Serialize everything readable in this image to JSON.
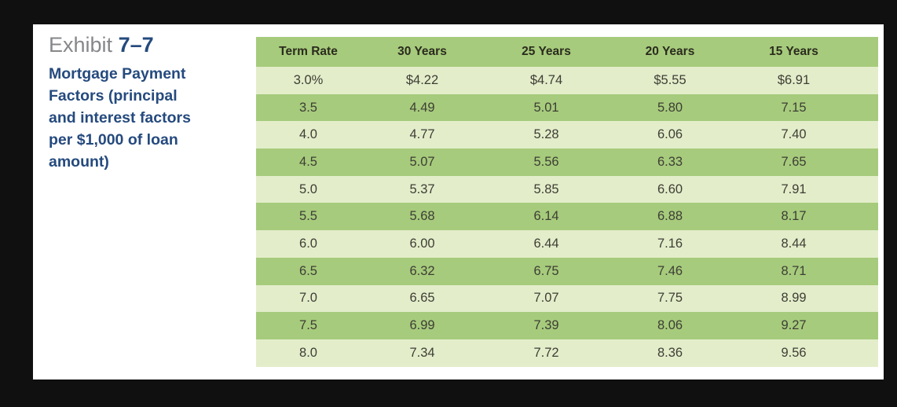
{
  "exhibit": {
    "label": "Exhibit",
    "number": "7–7",
    "description": "Mortgage Payment\nFactors (principal\nand interest factors\nper $1,000 of loan\namount)"
  },
  "table": {
    "columns": [
      "Term Rate",
      "30 Years",
      "25 Years",
      "20 Years",
      "15 Years"
    ],
    "rows": [
      [
        "3.0%",
        "$4.22",
        "$4.74",
        "$5.55",
        "$6.91"
      ],
      [
        "3.5",
        "4.49",
        "5.01",
        "5.80",
        "7.15"
      ],
      [
        "4.0",
        "4.77",
        "5.28",
        "6.06",
        "7.40"
      ],
      [
        "4.5",
        "5.07",
        "5.56",
        "6.33",
        "7.65"
      ],
      [
        "5.0",
        "5.37",
        "5.85",
        "6.60",
        "7.91"
      ],
      [
        "5.5",
        "5.68",
        "6.14",
        "6.88",
        "8.17"
      ],
      [
        "6.0",
        "6.00",
        "6.44",
        "7.16",
        "8.44"
      ],
      [
        "6.5",
        "6.32",
        "6.75",
        "7.46",
        "8.71"
      ],
      [
        "7.0",
        "6.65",
        "7.07",
        "7.75",
        "8.99"
      ],
      [
        "7.5",
        "6.99",
        "7.39",
        "8.06",
        "9.27"
      ],
      [
        "8.0",
        "7.34",
        "7.72",
        "8.36",
        "9.56"
      ]
    ]
  },
  "colors": {
    "frame_black": "#101010",
    "card_white": "#ffffff",
    "row_green": "#a6cb7c",
    "row_light": "#e3edca",
    "header_text": "#2b2b1e",
    "cell_text": "#3e3e35",
    "title_navy": "#254a7e",
    "label_gray": "#85878a"
  }
}
